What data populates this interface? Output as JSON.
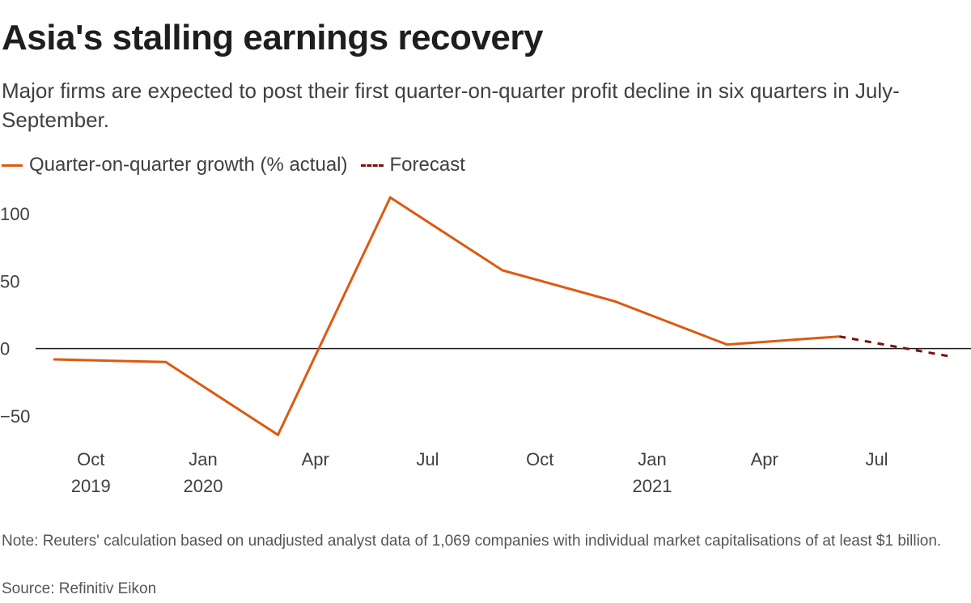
{
  "chart_data": {
    "type": "line",
    "title": "Asia's stalling earnings recovery",
    "subtitle": "Major firms are expected to post their first quarter-on-quarter profit decline in six quarters in July-September.",
    "x": [
      "2019-09",
      "2019-12",
      "2020-03",
      "2020-06",
      "2020-09",
      "2020-12",
      "2021-03",
      "2021-06",
      "2021-09"
    ],
    "series": [
      {
        "name": "Quarter-on-quarter growth (% actual)",
        "style": "solid",
        "color": "#dc5a10",
        "values": [
          -8,
          -10,
          -64,
          112,
          58,
          35,
          3,
          9,
          null
        ]
      },
      {
        "name": "Forecast",
        "style": "dashed",
        "color": "#7a1010",
        "values": [
          null,
          null,
          null,
          null,
          null,
          null,
          null,
          9,
          -6
        ]
      }
    ],
    "ylim": [
      -65,
      115
    ],
    "yticks": [
      {
        "value": 100,
        "label": "100"
      },
      {
        "value": 50,
        "label": "50"
      },
      {
        "value": 0,
        "label": "0"
      },
      {
        "value": -50,
        "label": "−50"
      }
    ],
    "xticks": [
      {
        "month": "2019-10",
        "label": "Oct",
        "year": "2019"
      },
      {
        "month": "2020-01",
        "label": "Jan",
        "year": "2020"
      },
      {
        "month": "2020-04",
        "label": "Apr",
        "year": ""
      },
      {
        "month": "2020-07",
        "label": "Jul",
        "year": ""
      },
      {
        "month": "2020-10",
        "label": "Oct",
        "year": ""
      },
      {
        "month": "2021-01",
        "label": "Jan",
        "year": "2021"
      },
      {
        "month": "2021-04",
        "label": "Apr",
        "year": ""
      },
      {
        "month": "2021-07",
        "label": "Jul",
        "year": ""
      }
    ],
    "xlabel": "",
    "ylabel": ""
  },
  "legend": {
    "actual_label": "Quarter-on-quarter growth (% actual)",
    "forecast_label": "Forecast"
  },
  "footer": {
    "note": "Note: Reuters' calculation based on unadjusted analyst data of 1,069 companies with individual market capitalisations of at least $1 billion.",
    "source": "Source: Refinitiv Eikon"
  }
}
